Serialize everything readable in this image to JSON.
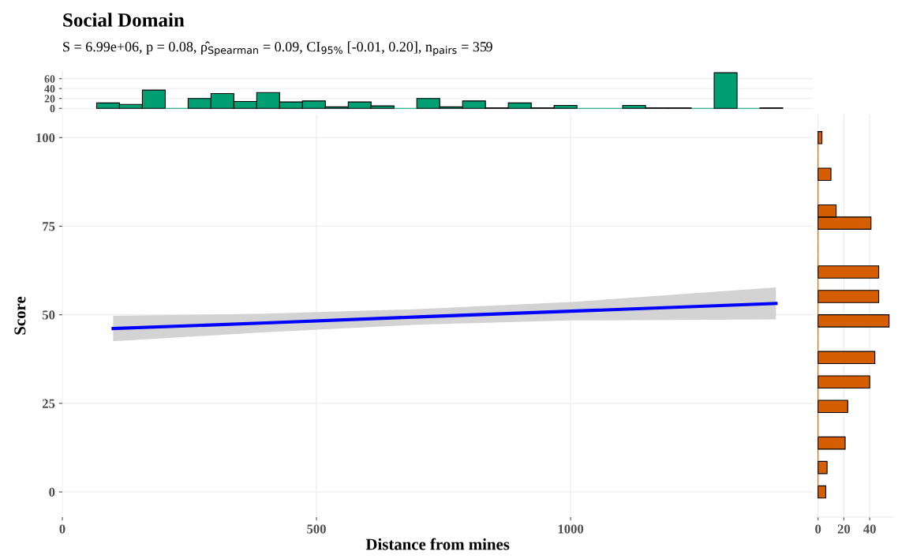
{
  "chart_data": [
    {
      "type": "histogram",
      "title": "Social Domain",
      "subtitle": "S = 6.99e+06, p = 0.08, ρ̂$_{Spearman}$ = 0.09, CI$_{95%}$ [-0.01, 0.20], n$_{pairs}$ = 359",
      "bins": [
        67.5,
        112.5,
        157.5,
        202.5,
        247.5,
        292.5,
        337.5,
        382.5,
        427.5,
        472.5,
        517.5,
        562.5,
        607.5,
        652.5,
        697.5,
        742.5,
        787.5,
        832.5,
        877.5,
        922.5,
        967.5,
        1012.5,
        1057.5,
        1102.5,
        1147.5,
        1192.5,
        1237.5,
        1282.5,
        1327.5,
        1372.5,
        1417.5
      ],
      "values": [
        11,
        8,
        37,
        0,
        20,
        30,
        14,
        32,
        13,
        15,
        3,
        13,
        5,
        0,
        20,
        3,
        15,
        1,
        11,
        1,
        6,
        0,
        0,
        6,
        1,
        1,
        0,
        72,
        0,
        1
      ],
      "color": "#009e73",
      "xlim": [
        0,
        1477
      ],
      "ylim": [
        -3.6,
        75.6
      ],
      "yticks": [
        0,
        20,
        40,
        60
      ],
      "grid": true,
      "tick_labels": "y"
    },
    {
      "type": "line",
      "xlabel": "Distance from mines",
      "ylabel": "Score",
      "xlim": [
        0,
        1477
      ],
      "xticks": [
        0,
        500,
        1000
      ],
      "ylim": [
        -7.1,
        106.5
      ],
      "yticks": [
        0,
        25,
        50,
        75,
        100
      ],
      "grid": true,
      "series": [
        {
          "color": "#0000ff",
          "x": [
            100,
            400,
            700,
            1000,
            1404
          ],
          "values": [
            46.1,
            47.7,
            49.4,
            51.0,
            53.2
          ],
          "lower": [
            42.5,
            45.1,
            47.2,
            48.4,
            48.7
          ],
          "upper": [
            49.7,
            50.3,
            51.6,
            53.6,
            57.7
          ]
        }
      ]
    },
    {
      "type": "histogram",
      "orientation": "horizontal",
      "bins": [
        -1.72,
        1.72,
        5.17,
        8.62,
        12.07,
        15.52,
        18.97,
        22.41,
        25.86,
        29.31,
        32.76,
        36.21,
        39.66,
        43.1,
        46.55,
        50.0,
        53.45,
        56.9,
        60.34,
        63.79,
        67.24,
        70.69,
        74.14,
        77.59,
        81.03,
        84.48,
        87.93,
        91.38,
        94.83,
        98.28,
        101.72
      ],
      "values": [
        6,
        0,
        7,
        0,
        21,
        0,
        0,
        23,
        0,
        40,
        0,
        44,
        0,
        0,
        55,
        0,
        47,
        0,
        47,
        0,
        0,
        0,
        41,
        14,
        0,
        0,
        10,
        0,
        0,
        3
      ],
      "color": "#d55e00",
      "ylim": [
        -7.1,
        106.5
      ],
      "xlim": [
        -2.75,
        57.75
      ],
      "xticks": [
        0,
        20,
        40
      ],
      "grid": true,
      "tick_labels": "x"
    }
  ]
}
